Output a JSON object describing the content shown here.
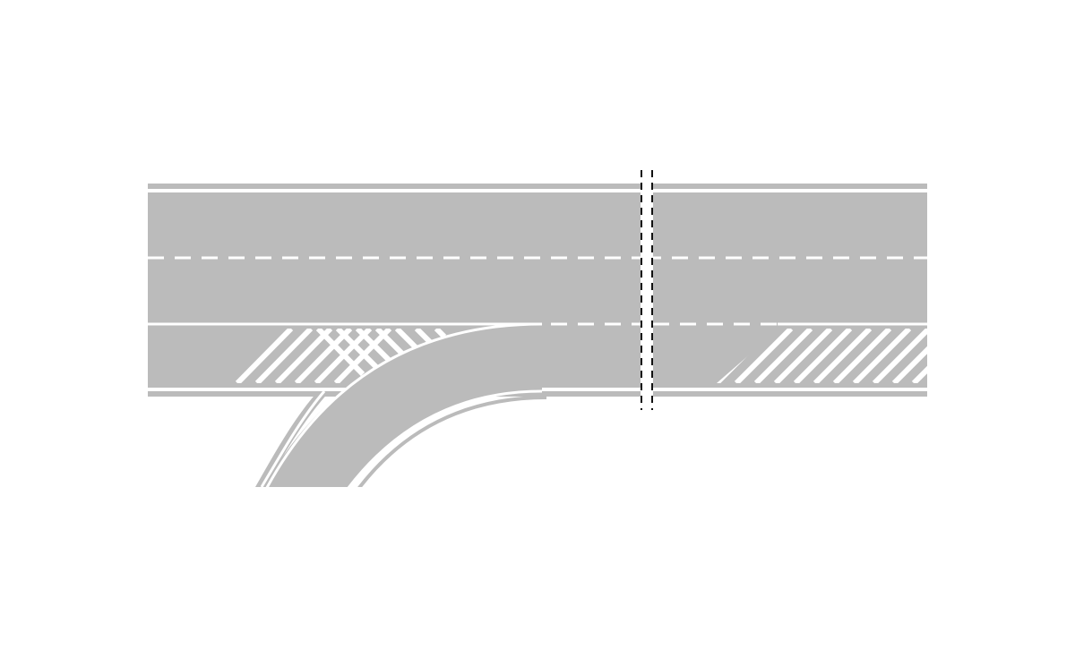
{
  "diagram": {
    "kind": "road-lane-marking-diagram",
    "subject": "exit-ramp-diverging-from-highway",
    "colors": {
      "background": "#ffffff",
      "pavement": "#bbbbbb",
      "marking": "#ffffff",
      "break_line": "#111111"
    },
    "elements": [
      "mainline-roadway",
      "lane-divider-dashed",
      "auxiliary-lane",
      "auxiliary-lane-dashed-line",
      "exit-ramp",
      "chevron-gore-area",
      "diagonal-hatch-area",
      "break-line-symbol"
    ]
  }
}
